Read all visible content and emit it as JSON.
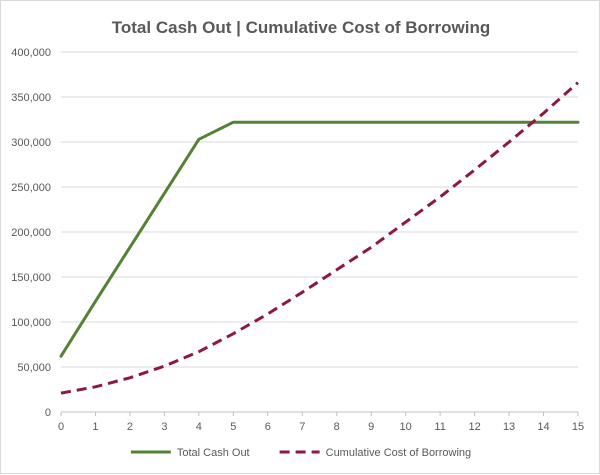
{
  "chart_data": {
    "type": "line",
    "title": "Total Cash Out | Cumulative Cost of Borrowing",
    "xlabel": "",
    "ylabel": "",
    "x": [
      0,
      1,
      2,
      3,
      4,
      5,
      6,
      7,
      8,
      9,
      10,
      11,
      12,
      13,
      14,
      15
    ],
    "xlim": [
      0,
      15
    ],
    "ylim": [
      0,
      400000
    ],
    "y_ticks": [
      0,
      50000,
      100000,
      150000,
      200000,
      250000,
      300000,
      350000,
      400000
    ],
    "y_tick_labels": [
      "0",
      "50,000",
      "100,000",
      "150,000",
      "200,000",
      "250,000",
      "300,000",
      "350,000",
      "400,000"
    ],
    "x_tick_labels": [
      "0",
      "1",
      "2",
      "3",
      "4",
      "5",
      "6",
      "7",
      "8",
      "9",
      "10",
      "11",
      "12",
      "13",
      "14",
      "15"
    ],
    "grid": true,
    "legend_position": "bottom",
    "series": [
      {
        "name": "Total Cash Out",
        "color": "#548235",
        "style": "solid",
        "values": [
          62000,
          123000,
          183000,
          243000,
          303000,
          322000,
          322000,
          322000,
          322000,
          322000,
          322000,
          322000,
          322000,
          322000,
          322000,
          322000
        ]
      },
      {
        "name": "Cumulative Cost of Borrowing",
        "color": "#8b1a3c",
        "style": "dashed",
        "values": [
          21000,
          28000,
          38000,
          51000,
          67000,
          87000,
          109000,
          133000,
          158000,
          183000,
          211000,
          239000,
          269000,
          300000,
          332000,
          366000
        ]
      }
    ]
  }
}
